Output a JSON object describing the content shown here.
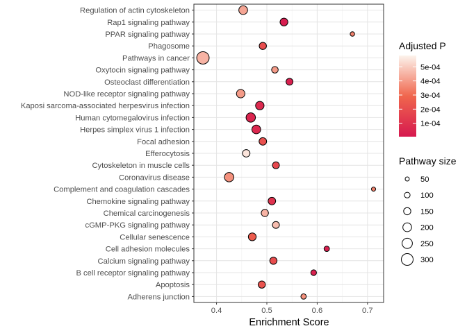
{
  "chart_data": {
    "type": "scatter",
    "title": "",
    "xlabel": "Enrichment Score",
    "ylabel": "",
    "xlim": [
      0.355,
      0.732
    ],
    "x_ticks": [
      0.4,
      0.5,
      0.6,
      0.7
    ],
    "x_tick_labels": [
      "0.4",
      "0.5",
      "0.6",
      "0.7"
    ],
    "grid": true,
    "legend_placement": "right",
    "categories": [
      "Regulation of actin cytoskeleton",
      "Rap1 signaling pathway",
      "PPAR signaling pathway",
      "Phagosome",
      "Pathways in cancer",
      "Oxytocin signaling pathway",
      "Osteoclast differentiation",
      "NOD-like receptor signaling pathway",
      "Kaposi sarcoma-associated herpesvirus infection",
      "Human cytomegalovirus infection",
      "Herpes simplex virus 1 infection",
      "Focal adhesion",
      "Efferocytosis",
      "Cytoskeleton in muscle cells",
      "Coronavirus disease",
      "Complement and coagulation cascades",
      "Chemokine signaling pathway",
      "Chemical carcinogenesis",
      "cGMP-PKG signaling pathway",
      "Cellular senescence",
      "Cell adhesion molecules",
      "Calcium signaling pathway",
      "B cell receptor signaling pathway",
      "Apoptosis",
      "Adherens junction"
    ],
    "points": [
      {
        "term": "Regulation of actin cytoskeleton",
        "x": 0.453,
        "p_adj": 0.00042,
        "size": 200
      },
      {
        "term": "Rap1 signaling pathway",
        "x": 0.534,
        "p_adj": 2e-05,
        "size": 170
      },
      {
        "term": "PPAR signaling pathway",
        "x": 0.67,
        "p_adj": 0.00035,
        "size": 60
      },
      {
        "term": "Phagosome",
        "x": 0.492,
        "p_adj": 0.0002,
        "size": 150
      },
      {
        "term": "Pathways in cancer",
        "x": 0.373,
        "p_adj": 0.00045,
        "size": 320
      },
      {
        "term": "Oxytocin signaling pathway",
        "x": 0.516,
        "p_adj": 0.0004,
        "size": 130
      },
      {
        "term": "Osteoclast differentiation",
        "x": 0.545,
        "p_adj": 3e-05,
        "size": 140
      },
      {
        "term": "NOD-like receptor signaling pathway",
        "x": 0.448,
        "p_adj": 0.0004,
        "size": 190
      },
      {
        "term": "Kaposi sarcoma-associated herpesvirus infection",
        "x": 0.486,
        "p_adj": 7e-05,
        "size": 190
      },
      {
        "term": "Human cytomegalovirus infection",
        "x": 0.468,
        "p_adj": 5e-05,
        "size": 220
      },
      {
        "term": "Herpes simplex virus 1 infection",
        "x": 0.479,
        "p_adj": 6e-05,
        "size": 200
      },
      {
        "term": "Focal adhesion",
        "x": 0.492,
        "p_adj": 0.00021,
        "size": 160
      },
      {
        "term": "Efferocytosis",
        "x": 0.459,
        "p_adj": 0.00055,
        "size": 160
      },
      {
        "term": "Cytoskeleton in muscle cells",
        "x": 0.518,
        "p_adj": 0.00018,
        "size": 140
      },
      {
        "term": "Coronavirus disease",
        "x": 0.425,
        "p_adj": 0.00038,
        "size": 220
      },
      {
        "term": "Complement and coagulation cascades",
        "x": 0.712,
        "p_adj": 0.00035,
        "size": 50
      },
      {
        "term": "Chemokine signaling pathway",
        "x": 0.51,
        "p_adj": 0.0001,
        "size": 160
      },
      {
        "term": "Chemical carcinogenesis",
        "x": 0.496,
        "p_adj": 0.00045,
        "size": 150
      },
      {
        "term": "cGMP-PKG signaling pathway",
        "x": 0.518,
        "p_adj": 0.00047,
        "size": 140
      },
      {
        "term": "Cellular senescence",
        "x": 0.471,
        "p_adj": 0.00025,
        "size": 170
      },
      {
        "term": "Cell adhesion molecules",
        "x": 0.619,
        "p_adj": 3e-05,
        "size": 90
      },
      {
        "term": "Calcium signaling pathway",
        "x": 0.513,
        "p_adj": 0.0002,
        "size": 150
      },
      {
        "term": "B cell receptor signaling pathway",
        "x": 0.593,
        "p_adj": 4e-05,
        "size": 100
      },
      {
        "term": "Apoptosis",
        "x": 0.49,
        "p_adj": 0.00022,
        "size": 150
      },
      {
        "term": "Adherens junction",
        "x": 0.573,
        "p_adj": 0.00038,
        "size": 90
      }
    ],
    "color_legend": {
      "title": "Adjusted P",
      "breaks": [
        0.0005,
        0.0004,
        0.0003,
        0.0002,
        0.0001
      ],
      "labels": [
        "5e-04",
        "4e-04",
        "3e-04",
        "2e-04",
        "1e-04"
      ],
      "range": [
        5e-06,
        0.00058
      ],
      "low_color": "#D6194F",
      "mid_color": "#F0664D",
      "high_color": "#FCF3EC"
    },
    "size_legend": {
      "title": "Pathway size",
      "breaks": [
        50,
        100,
        150,
        200,
        250,
        300
      ],
      "labels": [
        "50",
        "100",
        "150",
        "200",
        "250",
        "300"
      ]
    }
  }
}
